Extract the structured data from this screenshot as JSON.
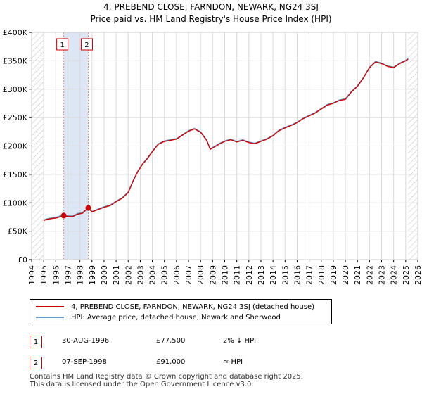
{
  "header": {
    "title": "4, PREBEND CLOSE, FARNDON, NEWARK, NG24 3SJ",
    "subtitle": "Price paid vs. HM Land Registry's House Price Index (HPI)"
  },
  "colors": {
    "price_line": "#cc0000",
    "hpi_line": "#6699cc",
    "shade": "#dde6f5",
    "marker_border": "#cc0000"
  },
  "chart_data": {
    "type": "line",
    "title": "Price paid vs. HM Land Registry's House Price Index (HPI)",
    "xlabel": "",
    "ylabel": "",
    "xlim": [
      1994,
      2026
    ],
    "ylim": [
      0,
      400000
    ],
    "x_ticks": [
      "1994",
      "1995",
      "1996",
      "1997",
      "1998",
      "1999",
      "2000",
      "2001",
      "2002",
      "2003",
      "2004",
      "2005",
      "2006",
      "2007",
      "2008",
      "2009",
      "2010",
      "2011",
      "2012",
      "2013",
      "2014",
      "2015",
      "2016",
      "2017",
      "2018",
      "2019",
      "2020",
      "2021",
      "2022",
      "2023",
      "2024",
      "2025",
      "2026"
    ],
    "y_ticks": [
      {
        "value": 0,
        "label": "£0"
      },
      {
        "value": 50000,
        "label": "£50K"
      },
      {
        "value": 100000,
        "label": "£100K"
      },
      {
        "value": 150000,
        "label": "£150K"
      },
      {
        "value": 200000,
        "label": "£200K"
      },
      {
        "value": 250000,
        "label": "£250K"
      },
      {
        "value": 300000,
        "label": "£300K"
      },
      {
        "value": 350000,
        "label": "£350K"
      },
      {
        "value": 400000,
        "label": "£400K"
      }
    ],
    "shaded_ranges": [
      [
        1996.66,
        1998.69
      ]
    ],
    "hatched_ranges": [
      [
        1994,
        1995.0
      ],
      [
        2025.2,
        2026
      ]
    ],
    "series": [
      {
        "name": "4, PREBEND CLOSE, FARNDON, NEWARK, NG24 3SJ (detached house)",
        "color": "#cc0000",
        "points": [
          [
            1995.0,
            69000
          ],
          [
            1995.3,
            71000
          ],
          [
            1995.7,
            72500
          ],
          [
            1996.0,
            73000
          ],
          [
            1996.3,
            75000
          ],
          [
            1996.66,
            77500
          ],
          [
            1997.0,
            76000
          ],
          [
            1997.4,
            75500
          ],
          [
            1997.8,
            80000
          ],
          [
            1998.2,
            81500
          ],
          [
            1998.69,
            91000
          ],
          [
            1999.0,
            84000
          ],
          [
            1999.5,
            88000
          ],
          [
            2000.0,
            92000
          ],
          [
            2000.5,
            95000
          ],
          [
            2001.0,
            102000
          ],
          [
            2001.5,
            108000
          ],
          [
            2002.0,
            118000
          ],
          [
            2002.4,
            138000
          ],
          [
            2002.8,
            155000
          ],
          [
            2003.2,
            168000
          ],
          [
            2003.6,
            178000
          ],
          [
            2004.0,
            190000
          ],
          [
            2004.5,
            203000
          ],
          [
            2005.0,
            208000
          ],
          [
            2005.5,
            210000
          ],
          [
            2006.0,
            212000
          ],
          [
            2006.5,
            219000
          ],
          [
            2007.0,
            226000
          ],
          [
            2007.5,
            230000
          ],
          [
            2008.0,
            224000
          ],
          [
            2008.5,
            210000
          ],
          [
            2008.8,
            194000
          ],
          [
            2009.2,
            199000
          ],
          [
            2009.6,
            204000
          ],
          [
            2010.0,
            208000
          ],
          [
            2010.5,
            211000
          ],
          [
            2011.0,
            207000
          ],
          [
            2011.5,
            210000
          ],
          [
            2012.0,
            206000
          ],
          [
            2012.5,
            204000
          ],
          [
            2013.0,
            208000
          ],
          [
            2013.5,
            212000
          ],
          [
            2014.0,
            218000
          ],
          [
            2014.5,
            227000
          ],
          [
            2015.0,
            232000
          ],
          [
            2015.5,
            236000
          ],
          [
            2016.0,
            241000
          ],
          [
            2016.5,
            248000
          ],
          [
            2017.0,
            253000
          ],
          [
            2017.5,
            258000
          ],
          [
            2018.0,
            265000
          ],
          [
            2018.5,
            272000
          ],
          [
            2019.0,
            275000
          ],
          [
            2019.5,
            280000
          ],
          [
            2020.0,
            282000
          ],
          [
            2020.5,
            295000
          ],
          [
            2021.0,
            305000
          ],
          [
            2021.5,
            320000
          ],
          [
            2022.0,
            338000
          ],
          [
            2022.5,
            348000
          ],
          [
            2023.0,
            345000
          ],
          [
            2023.5,
            340000
          ],
          [
            2024.0,
            338000
          ],
          [
            2024.5,
            345000
          ],
          [
            2025.0,
            350000
          ],
          [
            2025.2,
            353000
          ]
        ]
      },
      {
        "name": "HPI: Average price, detached house, Newark and Sherwood",
        "color": "#6699cc",
        "points": [
          [
            1995.0,
            70000
          ],
          [
            1995.3,
            72000
          ],
          [
            1995.7,
            73500
          ],
          [
            1996.0,
            74500
          ],
          [
            1996.3,
            76500
          ],
          [
            1996.66,
            79000
          ],
          [
            1997.0,
            78000
          ],
          [
            1997.4,
            77000
          ],
          [
            1997.8,
            81000
          ],
          [
            1998.2,
            83000
          ],
          [
            1998.69,
            90000
          ],
          [
            1999.0,
            85000
          ],
          [
            1999.5,
            89000
          ],
          [
            2000.0,
            93000
          ],
          [
            2000.5,
            96000
          ],
          [
            2001.0,
            103000
          ],
          [
            2001.5,
            109000
          ],
          [
            2002.0,
            119000
          ],
          [
            2002.4,
            139000
          ],
          [
            2002.8,
            156000
          ],
          [
            2003.2,
            169000
          ],
          [
            2003.6,
            179000
          ],
          [
            2004.0,
            191000
          ],
          [
            2004.5,
            204000
          ],
          [
            2005.0,
            209000
          ],
          [
            2005.5,
            211000
          ],
          [
            2006.0,
            213000
          ],
          [
            2006.5,
            220000
          ],
          [
            2007.0,
            227000
          ],
          [
            2007.5,
            231000
          ],
          [
            2008.0,
            225000
          ],
          [
            2008.5,
            211000
          ],
          [
            2008.8,
            195000
          ],
          [
            2009.2,
            200000
          ],
          [
            2009.6,
            205000
          ],
          [
            2010.0,
            209000
          ],
          [
            2010.5,
            212000
          ],
          [
            2011.0,
            208000
          ],
          [
            2011.5,
            211000
          ],
          [
            2012.0,
            207000
          ],
          [
            2012.5,
            205000
          ],
          [
            2013.0,
            209000
          ],
          [
            2013.5,
            213000
          ],
          [
            2014.0,
            219000
          ],
          [
            2014.5,
            228000
          ],
          [
            2015.0,
            233000
          ],
          [
            2015.5,
            237000
          ],
          [
            2016.0,
            242000
          ],
          [
            2016.5,
            249000
          ],
          [
            2017.0,
            254000
          ],
          [
            2017.5,
            259000
          ],
          [
            2018.0,
            266000
          ],
          [
            2018.5,
            273000
          ],
          [
            2019.0,
            276000
          ],
          [
            2019.5,
            281000
          ],
          [
            2020.0,
            283000
          ],
          [
            2020.5,
            296000
          ],
          [
            2021.0,
            306000
          ],
          [
            2021.5,
            321000
          ],
          [
            2022.0,
            339000
          ],
          [
            2022.5,
            349000
          ],
          [
            2023.0,
            346000
          ],
          [
            2023.5,
            341000
          ],
          [
            2024.0,
            339000
          ],
          [
            2024.5,
            346000
          ],
          [
            2025.0,
            351000
          ],
          [
            2025.2,
            354000
          ]
        ]
      }
    ],
    "markers": [
      {
        "label": "1",
        "x": 1996.66,
        "y": 77500
      },
      {
        "label": "2",
        "x": 1998.69,
        "y": 91000
      }
    ]
  },
  "legend": {
    "items": [
      {
        "label": "4, PREBEND CLOSE, FARNDON, NEWARK, NG24 3SJ (detached house)",
        "color": "#cc0000"
      },
      {
        "label": "HPI: Average price, detached house, Newark and Sherwood",
        "color": "#6699cc"
      }
    ]
  },
  "transactions": [
    {
      "num": "1",
      "date": "30-AUG-1996",
      "price": "£77,500",
      "hpi": "2% ↓ HPI"
    },
    {
      "num": "2",
      "date": "07-SEP-1998",
      "price": "£91,000",
      "hpi": "≈ HPI"
    }
  ],
  "footer": {
    "line1": "Contains HM Land Registry data © Crown copyright and database right 2025.",
    "line2": "This data is licensed under the Open Government Licence v3.0."
  }
}
